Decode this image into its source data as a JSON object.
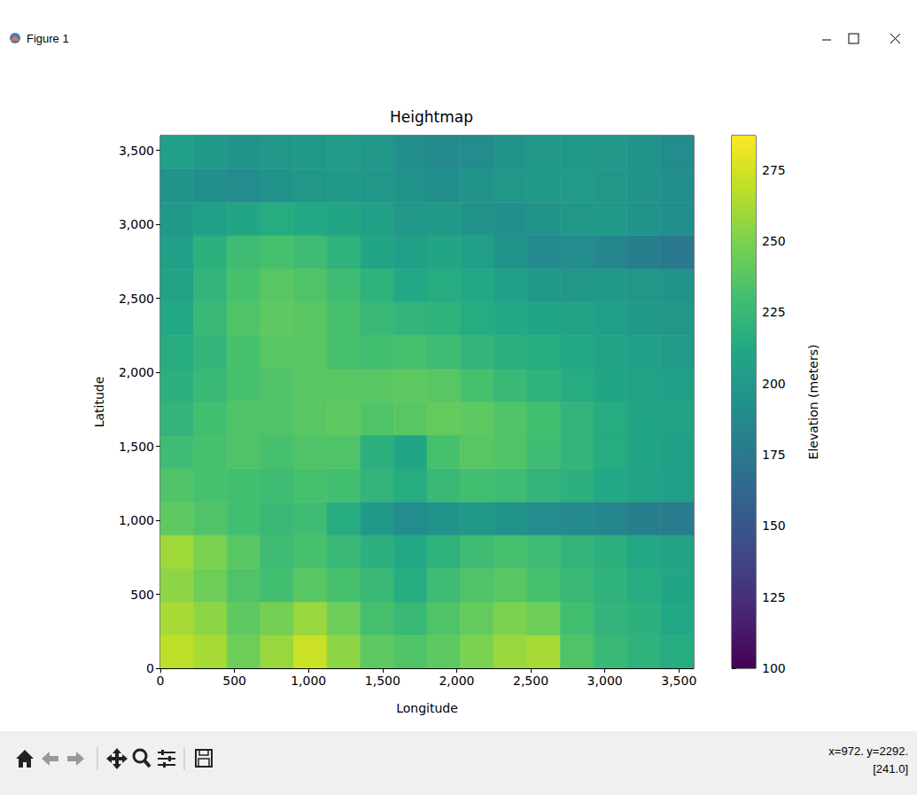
{
  "window": {
    "title": "Figure 1",
    "cursor": [
      "x=972. y=2292.",
      "[241.0]"
    ]
  },
  "chart_data": {
    "type": "heatmap",
    "title": "Heightmap",
    "x_label": "Longitude",
    "y_label": "Latitude",
    "xlim": [
      0,
      3600
    ],
    "ylim": [
      0,
      3600
    ],
    "xticks": [
      0,
      500,
      1000,
      1500,
      2000,
      2500,
      3000,
      3500
    ],
    "yticks": [
      0,
      500,
      1000,
      1500,
      2000,
      2500,
      3000,
      3500
    ],
    "grid": false,
    "x_edges": [
      0,
      225,
      450,
      675,
      900,
      1125,
      1350,
      1575,
      1800,
      2025,
      2250,
      2475,
      2700,
      2925,
      3150,
      3375,
      3600
    ],
    "y_edges": [
      0,
      225,
      450,
      675,
      900,
      1125,
      1350,
      1575,
      1800,
      2025,
      2250,
      2475,
      2700,
      2925,
      3150,
      3375,
      3600
    ],
    "z": [
      [
        268,
        262,
        245,
        258,
        272,
        255,
        240,
        235,
        240,
        250,
        258,
        262,
        235,
        225,
        220,
        215
      ],
      [
        262,
        255,
        240,
        248,
        258,
        245,
        232,
        225,
        235,
        242,
        250,
        245,
        230,
        222,
        218,
        212
      ],
      [
        255,
        245,
        235,
        230,
        238,
        232,
        225,
        215,
        228,
        235,
        238,
        232,
        225,
        220,
        215,
        210
      ],
      [
        260,
        250,
        238,
        228,
        232,
        225,
        218,
        212,
        220,
        228,
        232,
        228,
        222,
        218,
        212,
        208
      ],
      [
        240,
        235,
        230,
        225,
        228,
        215,
        200,
        190,
        195,
        200,
        195,
        190,
        188,
        185,
        180,
        178
      ],
      [
        235,
        232,
        230,
        228,
        232,
        230,
        222,
        215,
        225,
        230,
        228,
        222,
        218,
        212,
        208,
        205
      ],
      [
        228,
        232,
        235,
        232,
        235,
        235,
        218,
        210,
        232,
        238,
        235,
        228,
        222,
        215,
        210,
        205
      ],
      [
        222,
        230,
        235,
        235,
        238,
        240,
        235,
        238,
        242,
        240,
        235,
        230,
        222,
        215,
        210,
        208
      ],
      [
        218,
        225,
        232,
        235,
        238,
        238,
        238,
        240,
        238,
        232,
        225,
        220,
        215,
        210,
        208,
        205
      ],
      [
        215,
        222,
        232,
        238,
        238,
        232,
        230,
        232,
        228,
        222,
        218,
        215,
        212,
        208,
        205,
        202
      ],
      [
        212,
        225,
        235,
        240,
        238,
        232,
        225,
        222,
        220,
        215,
        212,
        210,
        208,
        205,
        200,
        198
      ],
      [
        208,
        222,
        232,
        238,
        235,
        228,
        220,
        212,
        215,
        212,
        205,
        200,
        198,
        200,
        198,
        195
      ],
      [
        205,
        218,
        228,
        232,
        228,
        220,
        210,
        205,
        210,
        205,
        195,
        188,
        190,
        185,
        180,
        175
      ],
      [
        200,
        205,
        210,
        215,
        212,
        210,
        205,
        198,
        200,
        195,
        192,
        195,
        198,
        200,
        195,
        192
      ],
      [
        195,
        192,
        190,
        195,
        198,
        200,
        198,
        195,
        192,
        195,
        198,
        200,
        202,
        198,
        195,
        192
      ],
      [
        205,
        200,
        195,
        198,
        200,
        202,
        198,
        192,
        188,
        190,
        195,
        198,
        200,
        198,
        195,
        190
      ]
    ],
    "colorbar": {
      "label": "Elevation (meters)",
      "range": [
        100,
        287
      ],
      "ticks": [
        100,
        125,
        150,
        175,
        200,
        225,
        250,
        275
      ]
    }
  }
}
